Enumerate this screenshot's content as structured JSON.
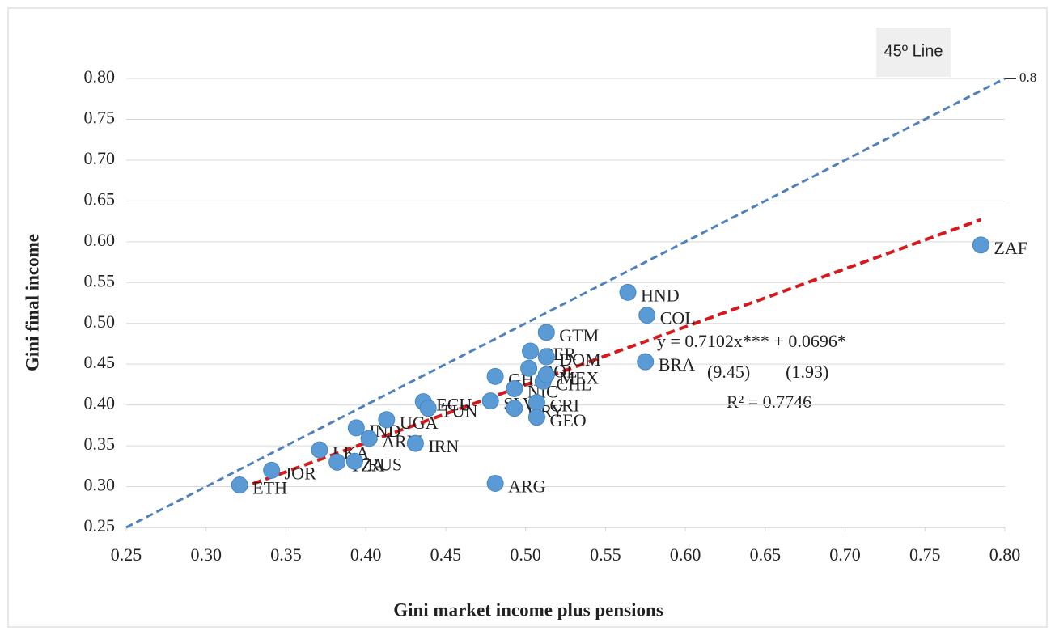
{
  "chart_data": {
    "type": "scatter",
    "x_label": "Gini market income plus pensions",
    "y_label": "Gini final income",
    "xlim": [
      0.25,
      0.8
    ],
    "ylim": [
      0.25,
      0.8
    ],
    "xticks": [
      0.25,
      {
        "value": 0.3,
        "label": "0.30"
      },
      0.35,
      {
        "value": 0.4,
        "label": "0.40"
      },
      0.45,
      {
        "value": 0.5,
        "label": "0.50"
      },
      0.55,
      {
        "value": 0.6,
        "label": "0.60"
      },
      0.65,
      {
        "value": 0.7,
        "label": "0.70"
      },
      0.75,
      {
        "value": 0.8,
        "label": "0.80"
      }
    ],
    "yticks": [
      0.25,
      {
        "value": 0.3,
        "label": "0.30"
      },
      0.35,
      {
        "value": 0.4,
        "label": "0.40"
      },
      0.45,
      {
        "value": 0.5,
        "label": "0.50"
      },
      0.55,
      {
        "value": 0.6,
        "label": "0.60"
      },
      0.65,
      {
        "value": 0.7,
        "label": "0.70"
      },
      0.75,
      {
        "value": 0.8,
        "label": "0.80"
      }
    ],
    "grid": true,
    "color": "#5b9bd5",
    "labels": [
      "ETH",
      "JOR",
      "LKA",
      "TZA",
      "RUS",
      "IND",
      "ARM",
      "UGA",
      "IRN",
      "ECU",
      "TUN",
      "GHA",
      "SLV",
      "ARG",
      "NIC",
      "URY",
      "PER",
      "GTM",
      "DOM",
      "BOL",
      "CHL",
      "MEX",
      "CRI",
      "GEO",
      "HND",
      "COL",
      "BRA",
      "ZAF"
    ],
    "x": [
      0.321,
      0.341,
      0.371,
      0.382,
      0.393,
      0.394,
      0.402,
      0.413,
      0.431,
      0.436,
      0.439,
      0.481,
      0.478,
      0.481,
      0.493,
      0.493,
      0.503,
      0.513,
      0.513,
      0.502,
      0.511,
      0.513,
      0.507,
      0.507,
      0.564,
      0.576,
      0.575,
      0.785
    ],
    "y": [
      0.302,
      0.32,
      0.345,
      0.33,
      0.331,
      0.372,
      0.359,
      0.382,
      0.353,
      0.404,
      0.396,
      0.435,
      0.405,
      0.304,
      0.42,
      0.396,
      0.466,
      0.489,
      0.459,
      0.445,
      0.429,
      0.437,
      0.403,
      0.385,
      0.538,
      0.51,
      0.453,
      0.596
    ],
    "reference_line": {
      "name": "45º Line",
      "color": "#4f81bd",
      "end_label": "0.8"
    },
    "trendline": {
      "slope": 0.7102,
      "intercept": 0.0696,
      "color": "#d7191c",
      "equation": "y = 0.7102x*** + 0.0696*",
      "t_stats": "(9.45)        (1.93)",
      "r_squared": "R² = 0.7746"
    }
  }
}
